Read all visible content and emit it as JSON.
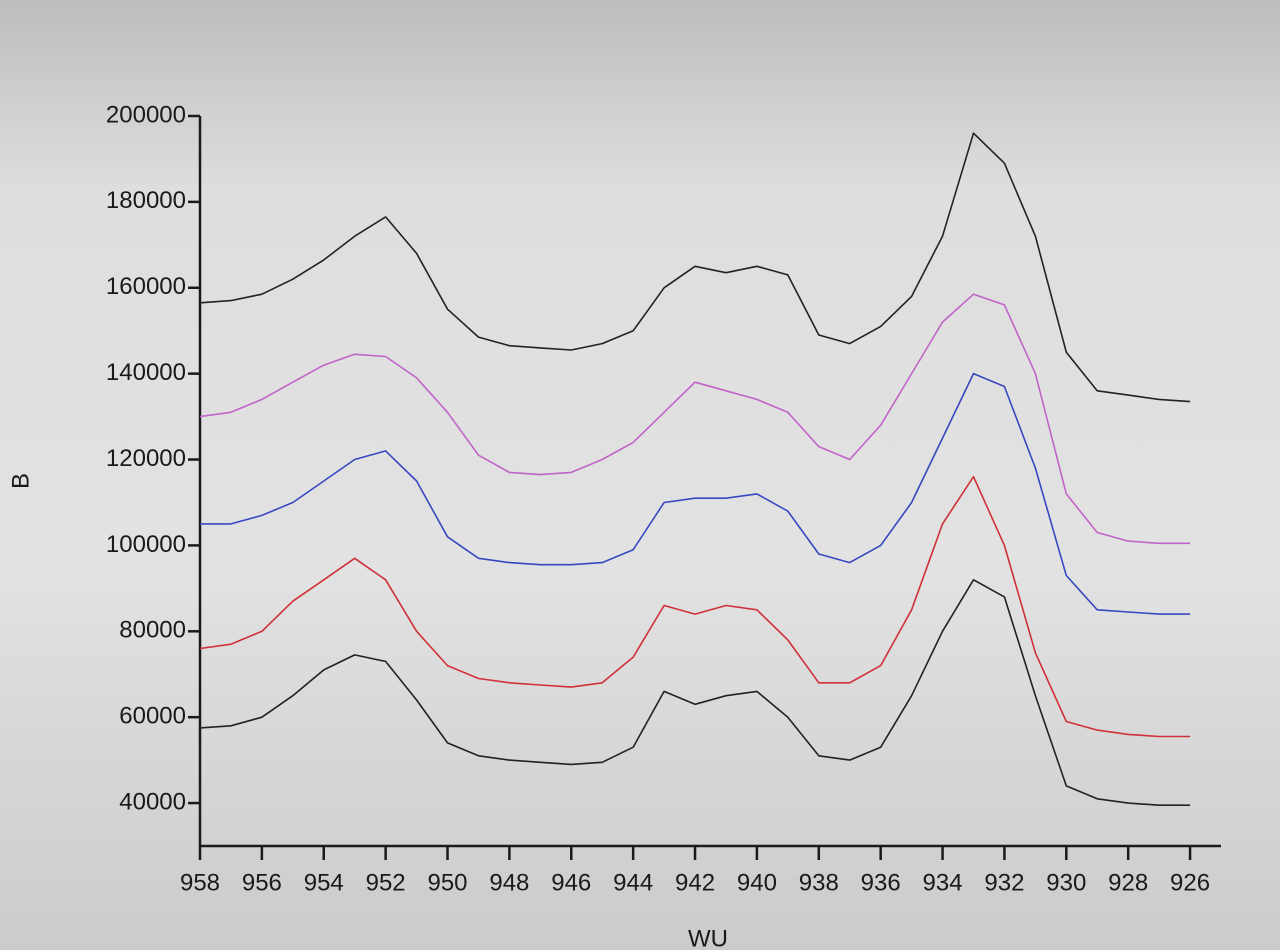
{
  "chart_data": {
    "type": "line",
    "x_label": "WU",
    "y_label": "B",
    "x": [
      958,
      957,
      956,
      955,
      954,
      953,
      952,
      951,
      950,
      949,
      948,
      947,
      946,
      945,
      944,
      943,
      942,
      941,
      940,
      939,
      938,
      937,
      936,
      935,
      934,
      933,
      932,
      931,
      930,
      929,
      928,
      927,
      926
    ],
    "series": [
      {
        "color": "#222222",
        "values": [
          156500,
          157000,
          158500,
          162000,
          166500,
          172000,
          176500,
          168000,
          155000,
          148500,
          146500,
          146000,
          145500,
          147000,
          150000,
          160000,
          165000,
          163500,
          165000,
          163000,
          149000,
          147000,
          151000,
          158000,
          172000,
          196000,
          189000,
          172000,
          145000,
          136000,
          135000,
          134000,
          133500
        ]
      },
      {
        "color": "#c064c8",
        "values": [
          130000,
          131000,
          134000,
          138000,
          142000,
          144500,
          144000,
          139000,
          131000,
          121000,
          117000,
          116500,
          117000,
          120000,
          124000,
          131000,
          138000,
          136000,
          134000,
          131000,
          123000,
          120000,
          128000,
          140000,
          152000,
          158500,
          156000,
          140000,
          112000,
          103000,
          101000,
          100500,
          100500
        ]
      },
      {
        "color": "#3848c0",
        "values": [
          105000,
          105000,
          107000,
          110000,
          115000,
          120000,
          122000,
          115000,
          102000,
          97000,
          96000,
          95500,
          95500,
          96000,
          99000,
          110000,
          111000,
          111000,
          112000,
          108000,
          98000,
          96000,
          100000,
          110000,
          125000,
          140000,
          137000,
          118000,
          93000,
          85000,
          84500,
          84000,
          84000
        ]
      },
      {
        "color": "#d03038",
        "values": [
          76000,
          77000,
          80000,
          87000,
          92000,
          97000,
          92000,
          80000,
          72000,
          69000,
          68000,
          67500,
          67000,
          68000,
          74000,
          86000,
          84000,
          86000,
          85000,
          78000,
          68000,
          68000,
          72000,
          85000,
          105000,
          116000,
          100000,
          75000,
          59000,
          57000,
          56000,
          55500,
          55500
        ]
      },
      {
        "color": "#222222",
        "values": [
          57500,
          58000,
          60000,
          65000,
          71000,
          74500,
          73000,
          64000,
          54000,
          51000,
          50000,
          49500,
          49000,
          49500,
          53000,
          66000,
          63000,
          65000,
          66000,
          60000,
          51000,
          50000,
          53000,
          65000,
          80000,
          92000,
          88000,
          65000,
          44000,
          41000,
          40000,
          39500,
          39500
        ]
      }
    ],
    "xlim": [
      958,
      925
    ],
    "xticks": [
      958,
      956,
      954,
      952,
      950,
      948,
      946,
      944,
      942,
      940,
      938,
      936,
      934,
      932,
      930,
      928,
      926
    ],
    "ylim": [
      30000,
      200000
    ],
    "yticks": [
      40000,
      60000,
      80000,
      100000,
      120000,
      140000,
      160000,
      180000,
      200000
    ]
  }
}
